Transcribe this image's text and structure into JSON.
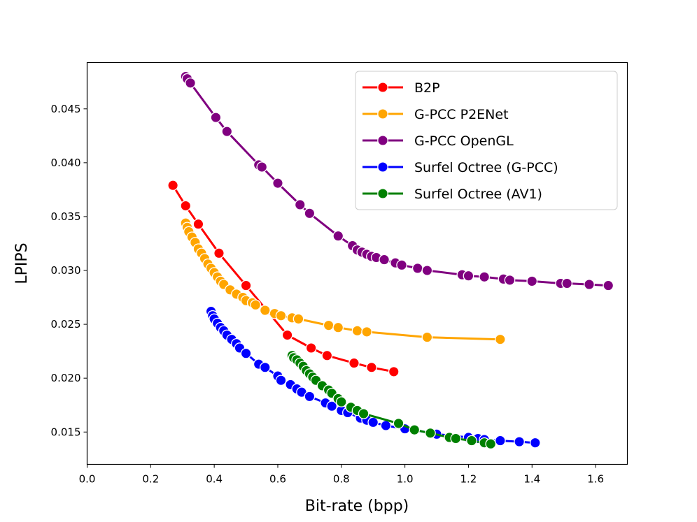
{
  "chart_data": {
    "type": "line",
    "title": "",
    "xlabel": "Bit-rate (bpp)",
    "ylabel": "LPIPS",
    "xlim": [
      0.0,
      1.7
    ],
    "ylim": [
      0.012,
      0.0493
    ],
    "xticks": [
      0.0,
      0.2,
      0.4,
      0.6,
      0.8,
      1.0,
      1.2,
      1.4,
      1.6
    ],
    "xtick_labels": [
      "0.0",
      "0.2",
      "0.4",
      "0.6",
      "0.8",
      "1.0",
      "1.2",
      "1.4",
      "1.6"
    ],
    "yticks": [
      0.015,
      0.02,
      0.025,
      0.03,
      0.035,
      0.04,
      0.045
    ],
    "ytick_labels": [
      "0.015",
      "0.020",
      "0.025",
      "0.030",
      "0.035",
      "0.040",
      "0.045"
    ],
    "grid": false,
    "legend_position": "top-right",
    "series": [
      {
        "name": "B2P",
        "color": "#ff0000",
        "x": [
          0.27,
          0.31,
          0.35,
          0.415,
          0.5,
          0.63,
          0.705,
          0.755,
          0.84,
          0.895,
          0.965
        ],
        "y": [
          0.0379,
          0.036,
          0.0343,
          0.0316,
          0.0286,
          0.024,
          0.0228,
          0.0221,
          0.0214,
          0.021,
          0.0206
        ]
      },
      {
        "name": "G-PCC P2ENet",
        "color": "#ffa500",
        "x": [
          0.31,
          0.315,
          0.32,
          0.33,
          0.34,
          0.35,
          0.36,
          0.37,
          0.38,
          0.39,
          0.4,
          0.41,
          0.42,
          0.43,
          0.45,
          0.47,
          0.49,
          0.5,
          0.52,
          0.53,
          0.56,
          0.59,
          0.61,
          0.645,
          0.665,
          0.76,
          0.79,
          0.85,
          0.88,
          1.07,
          1.3
        ],
        "y": [
          0.0344,
          0.034,
          0.0336,
          0.0331,
          0.0326,
          0.032,
          0.0316,
          0.0311,
          0.0306,
          0.0302,
          0.0298,
          0.0294,
          0.029,
          0.0287,
          0.0282,
          0.0278,
          0.0275,
          0.0272,
          0.027,
          0.0268,
          0.0263,
          0.026,
          0.0258,
          0.0256,
          0.0255,
          0.0249,
          0.0247,
          0.0244,
          0.0243,
          0.0238,
          0.0236
        ]
      },
      {
        "name": "G-PCC OpenGL",
        "color": "#800080",
        "x": [
          0.31,
          0.315,
          0.325,
          0.405,
          0.44,
          0.54,
          0.55,
          0.6,
          0.67,
          0.7,
          0.79,
          0.835,
          0.85,
          0.865,
          0.88,
          0.895,
          0.91,
          0.935,
          0.97,
          0.99,
          1.04,
          1.07,
          1.18,
          1.2,
          1.25,
          1.31,
          1.33,
          1.4,
          1.49,
          1.51,
          1.58,
          1.64
        ],
        "y": [
          0.048,
          0.0478,
          0.0474,
          0.0442,
          0.0429,
          0.0398,
          0.0396,
          0.0381,
          0.0361,
          0.0353,
          0.0332,
          0.0323,
          0.0319,
          0.0317,
          0.0315,
          0.0313,
          0.0312,
          0.031,
          0.0307,
          0.0305,
          0.0302,
          0.03,
          0.0296,
          0.0295,
          0.0294,
          0.0292,
          0.0291,
          0.029,
          0.0288,
          0.0288,
          0.0287,
          0.0286
        ]
      },
      {
        "name": "Surfel Octree (G-PCC)",
        "color": "#0000ff",
        "x": [
          0.39,
          0.395,
          0.4,
          0.41,
          0.42,
          0.43,
          0.44,
          0.455,
          0.47,
          0.48,
          0.5,
          0.54,
          0.56,
          0.6,
          0.61,
          0.64,
          0.66,
          0.675,
          0.7,
          0.75,
          0.77,
          0.8,
          0.82,
          0.86,
          0.88,
          0.9,
          0.94,
          1.0,
          1.03,
          1.08,
          1.1,
          1.2,
          1.23,
          1.25,
          1.3,
          1.36,
          1.41
        ],
        "y": [
          0.0262,
          0.0258,
          0.0255,
          0.0251,
          0.0247,
          0.0244,
          0.024,
          0.0236,
          0.0232,
          0.0228,
          0.0223,
          0.0213,
          0.021,
          0.0202,
          0.0198,
          0.0194,
          0.019,
          0.0187,
          0.0183,
          0.0177,
          0.0174,
          0.017,
          0.0168,
          0.0163,
          0.0161,
          0.0159,
          0.0156,
          0.0153,
          0.0152,
          0.0149,
          0.0148,
          0.0145,
          0.0144,
          0.0143,
          0.0142,
          0.0141,
          0.014
        ]
      },
      {
        "name": "Surfel Octree (AV1)",
        "color": "#008000",
        "x": [
          0.645,
          0.65,
          0.66,
          0.67,
          0.68,
          0.69,
          0.7,
          0.71,
          0.72,
          0.74,
          0.76,
          0.77,
          0.79,
          0.8,
          0.83,
          0.85,
          0.87,
          0.98,
          1.03,
          1.08,
          1.14,
          1.16,
          1.21,
          1.25,
          1.27
        ],
        "y": [
          0.0221,
          0.0219,
          0.0217,
          0.0214,
          0.0211,
          0.0207,
          0.0204,
          0.0201,
          0.0198,
          0.0193,
          0.0189,
          0.0186,
          0.0181,
          0.0178,
          0.0173,
          0.017,
          0.0167,
          0.0158,
          0.0152,
          0.0149,
          0.0145,
          0.0144,
          0.0142,
          0.014,
          0.0139
        ]
      }
    ]
  }
}
